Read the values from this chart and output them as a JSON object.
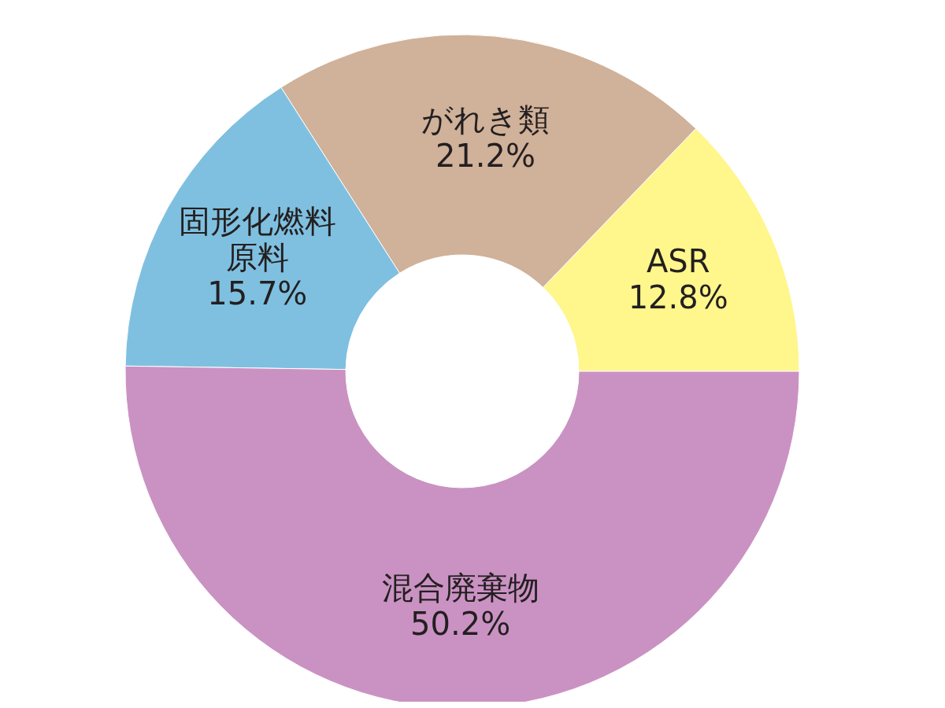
{
  "chart_data": {
    "type": "donut",
    "categories": [
      "ASR",
      "がれき類",
      "固形化燃料原料",
      "混合廃棄物"
    ],
    "values": [
      12.8,
      21.2,
      15.7,
      50.2
    ],
    "colors": [
      "#fff68c",
      "#d0b199",
      "#7fc0e0",
      "#ca92c2"
    ],
    "value_labels": [
      "12.8%",
      "21.2%",
      "15.7%",
      "50.2%"
    ]
  }
}
